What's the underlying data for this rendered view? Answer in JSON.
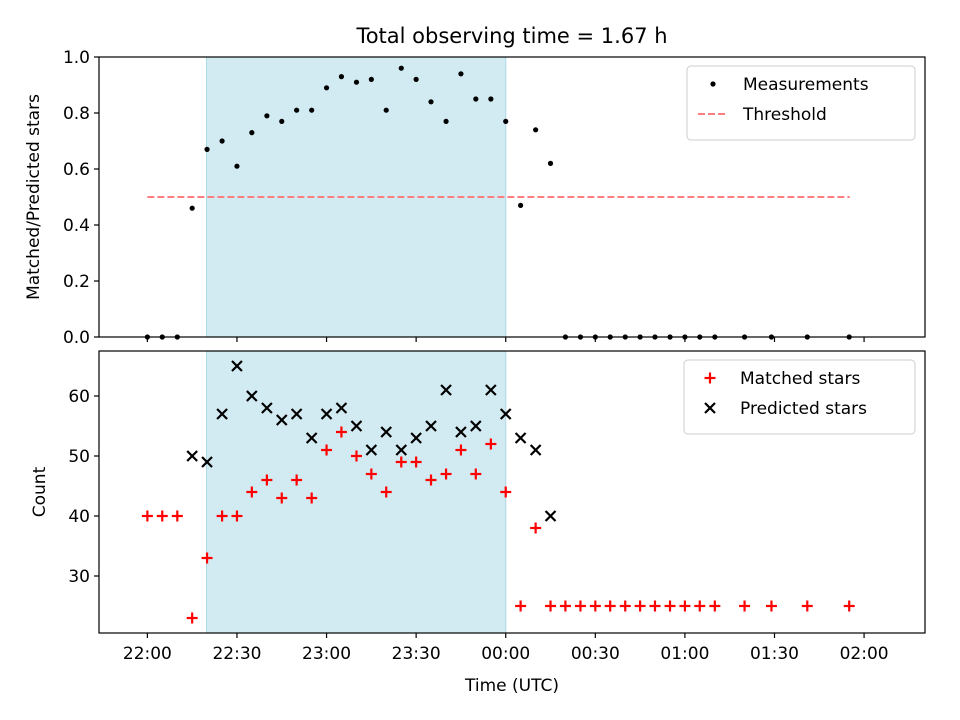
{
  "chart_data": {
    "title": "Total observing time = 1.67 h",
    "xlabel": "Time (UTC)",
    "x_unit": "hours UTC, continuing past midnight (24.5 = 00:30)",
    "xlim": [
      21.73,
      26.34
    ],
    "x_ticks": [
      {
        "value": 22.0,
        "label": "22:00"
      },
      {
        "value": 22.5,
        "label": "22:30"
      },
      {
        "value": 23.0,
        "label": "23:00"
      },
      {
        "value": 23.5,
        "label": "23:30"
      },
      {
        "value": 24.0,
        "label": "00:00"
      },
      {
        "value": 24.5,
        "label": "00:30"
      },
      {
        "value": 25.0,
        "label": "01:00"
      },
      {
        "value": 25.5,
        "label": "01:30"
      },
      {
        "value": 26.0,
        "label": "02:00"
      }
    ],
    "observing_window": {
      "start": 22.33,
      "end": 24.0,
      "color": "#add8e6"
    },
    "panels": [
      {
        "type": "scatter",
        "ylabel": "Matched/Predicted stars",
        "ylim": [
          0,
          1.0
        ],
        "yticks": [
          {
            "value": 0.0,
            "label": "0.0"
          },
          {
            "value": 0.2,
            "label": "0.2"
          },
          {
            "value": 0.4,
            "label": "0.4"
          },
          {
            "value": 0.6,
            "label": "0.6"
          },
          {
            "value": 0.8,
            "label": "0.8"
          },
          {
            "value": 1.0,
            "label": "1.0"
          }
        ],
        "legend": [
          {
            "label": "Measurements",
            "marker": "dot",
            "color": "#000000"
          },
          {
            "label": "Threshold",
            "marker": "dashed-line",
            "color": "#ff7f7f"
          }
        ],
        "threshold": {
          "value": 0.5,
          "x_start": 22.0,
          "x_end": 25.92,
          "color": "#ff7f7f"
        },
        "series": [
          {
            "name": "Measurements",
            "marker": "dot",
            "color": "#000000",
            "points": [
              [
                22.0,
                0
              ],
              [
                22.083,
                0
              ],
              [
                22.167,
                0
              ],
              [
                22.25,
                0.46
              ],
              [
                22.333,
                0.67
              ],
              [
                22.417,
                0.7
              ],
              [
                22.5,
                0.61
              ],
              [
                22.583,
                0.73
              ],
              [
                22.667,
                0.79
              ],
              [
                22.75,
                0.77
              ],
              [
                22.833,
                0.81
              ],
              [
                22.917,
                0.81
              ],
              [
                23.0,
                0.89
              ],
              [
                23.083,
                0.93
              ],
              [
                23.167,
                0.91
              ],
              [
                23.25,
                0.92
              ],
              [
                23.333,
                0.81
              ],
              [
                23.417,
                0.96
              ],
              [
                23.5,
                0.92
              ],
              [
                23.583,
                0.84
              ],
              [
                23.667,
                0.77
              ],
              [
                23.75,
                0.94
              ],
              [
                23.833,
                0.85
              ],
              [
                23.917,
                0.85
              ],
              [
                24.0,
                0.77
              ],
              [
                24.083,
                0.47
              ],
              [
                24.167,
                0.74
              ],
              [
                24.25,
                0.62
              ],
              [
                24.333,
                0
              ],
              [
                24.417,
                0
              ],
              [
                24.5,
                0
              ],
              [
                24.583,
                0
              ],
              [
                24.667,
                0
              ],
              [
                24.75,
                0
              ],
              [
                24.833,
                0
              ],
              [
                24.917,
                0
              ],
              [
                25.0,
                0
              ],
              [
                25.083,
                0
              ],
              [
                25.167,
                0
              ],
              [
                25.333,
                0
              ],
              [
                25.483,
                0
              ],
              [
                25.683,
                0
              ],
              [
                25.917,
                0
              ]
            ]
          }
        ]
      },
      {
        "type": "scatter",
        "ylabel": "Count",
        "ylim": [
          20.5,
          67.5
        ],
        "yticks": [
          {
            "value": 30,
            "label": "30"
          },
          {
            "value": 40,
            "label": "40"
          },
          {
            "value": 50,
            "label": "50"
          },
          {
            "value": 60,
            "label": "60"
          }
        ],
        "legend": [
          {
            "label": "Matched stars",
            "marker": "plus",
            "color": "#ff0000"
          },
          {
            "label": "Predicted stars",
            "marker": "x",
            "color": "#000000"
          }
        ],
        "series": [
          {
            "name": "Matched stars",
            "marker": "plus",
            "color": "#ff0000",
            "points": [
              [
                22.0,
                40
              ],
              [
                22.083,
                40
              ],
              [
                22.167,
                40
              ],
              [
                22.25,
                23
              ],
              [
                22.333,
                33
              ],
              [
                22.417,
                40
              ],
              [
                22.5,
                40
              ],
              [
                22.583,
                44
              ],
              [
                22.667,
                46
              ],
              [
                22.75,
                43
              ],
              [
                22.833,
                46
              ],
              [
                22.917,
                43
              ],
              [
                23.0,
                51
              ],
              [
                23.083,
                54
              ],
              [
                23.167,
                50
              ],
              [
                23.25,
                47
              ],
              [
                23.333,
                44
              ],
              [
                23.417,
                49
              ],
              [
                23.5,
                49
              ],
              [
                23.583,
                46
              ],
              [
                23.667,
                47
              ],
              [
                23.75,
                51
              ],
              [
                23.833,
                47
              ],
              [
                23.917,
                52
              ],
              [
                24.0,
                44
              ],
              [
                24.083,
                25
              ],
              [
                24.167,
                38
              ],
              [
                24.25,
                25
              ],
              [
                24.333,
                25
              ],
              [
                24.417,
                25
              ],
              [
                24.5,
                25
              ],
              [
                24.583,
                25
              ],
              [
                24.667,
                25
              ],
              [
                24.75,
                25
              ],
              [
                24.833,
                25
              ],
              [
                24.917,
                25
              ],
              [
                25.0,
                25
              ],
              [
                25.083,
                25
              ],
              [
                25.167,
                25
              ],
              [
                25.333,
                25
              ],
              [
                25.483,
                25
              ],
              [
                25.683,
                25
              ],
              [
                25.917,
                25
              ]
            ]
          },
          {
            "name": "Predicted stars",
            "marker": "x",
            "color": "#000000",
            "points": [
              [
                22.25,
                50
              ],
              [
                22.333,
                49
              ],
              [
                22.417,
                57
              ],
              [
                22.5,
                65
              ],
              [
                22.583,
                60
              ],
              [
                22.667,
                58
              ],
              [
                22.75,
                56
              ],
              [
                22.833,
                57
              ],
              [
                22.917,
                53
              ],
              [
                23.0,
                57
              ],
              [
                23.083,
                58
              ],
              [
                23.167,
                55
              ],
              [
                23.25,
                51
              ],
              [
                23.333,
                54
              ],
              [
                23.417,
                51
              ],
              [
                23.5,
                53
              ],
              [
                23.583,
                55
              ],
              [
                23.667,
                61
              ],
              [
                23.75,
                54
              ],
              [
                23.833,
                55
              ],
              [
                23.917,
                61
              ],
              [
                24.0,
                57
              ],
              [
                24.083,
                53
              ],
              [
                24.167,
                51
              ],
              [
                24.25,
                40
              ]
            ]
          }
        ]
      }
    ]
  }
}
